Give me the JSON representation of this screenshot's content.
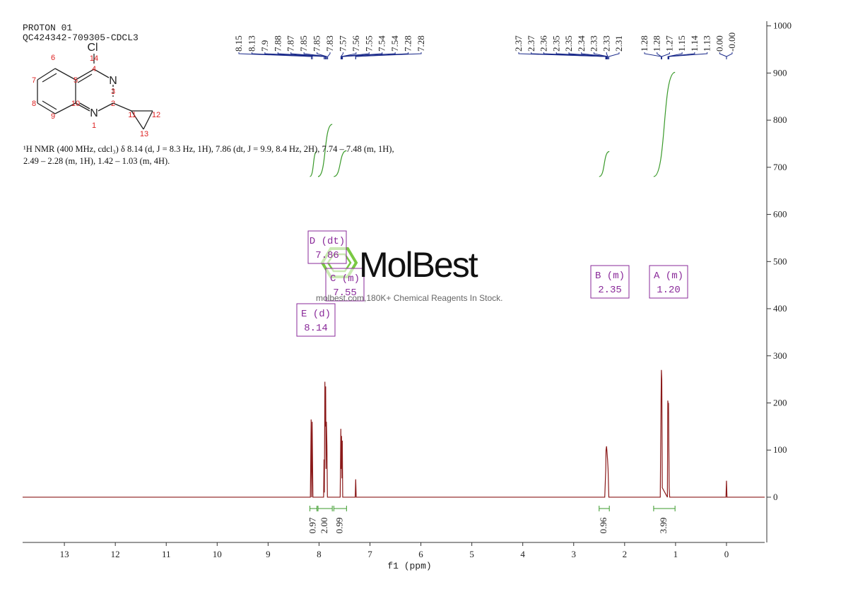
{
  "chart_data": {
    "type": "line",
    "title": "PROTON 01",
    "subtitle": "QC424342-709305-CDCL3",
    "annotation": "¹H NMR (400 MHz, cdcl₃) δ 8.14 (d, J = 8.3 Hz, 1H), 7.86 (dt, J = 9.9, 8.4 Hz, 2H), 7.74 – 7.48 (m, 1H), 2.49 – 2.28 (m, 1H), 1.42 – 1.03 (m, 4H).",
    "xlabel": "f1 (ppm)",
    "xlim": [
      13.82,
      -0.75
    ],
    "ylim": [
      -96,
      1010
    ],
    "xticks": [
      13,
      12,
      11,
      10,
      9,
      8,
      7,
      6,
      5,
      4,
      3,
      2,
      1,
      0
    ],
    "yticks": [
      0,
      100,
      200,
      300,
      400,
      500,
      600,
      700,
      800,
      900,
      1000
    ],
    "x": [
      13.82,
      8.17,
      8.155,
      8.145,
      8.135,
      8.12,
      7.91,
      7.902,
      7.895,
      7.885,
      7.878,
      7.87,
      7.862,
      7.855,
      7.845,
      7.835,
      7.585,
      7.572,
      7.565,
      7.558,
      7.55,
      7.543,
      7.535,
      7.29,
      7.28,
      7.27,
      2.39,
      2.37,
      2.365,
      2.355,
      2.345,
      2.335,
      2.325,
      2.31,
      1.3,
      1.285,
      1.278,
      1.27,
      1.26,
      1.16,
      1.152,
      1.145,
      1.138,
      1.125,
      1.115,
      0.01,
      0,
      -0.01,
      -0.75
    ],
    "series": [
      {
        "color": "#8b1a1a",
        "values": [
          0,
          0,
          165,
          0,
          160,
          0,
          0,
          80,
          10,
          245,
          150,
          235,
          60,
          160,
          110,
          0,
          0,
          145,
          60,
          130,
          40,
          120,
          0,
          0,
          38,
          0,
          0,
          60,
          100,
          108,
          95,
          80,
          60,
          0,
          0,
          200,
          270,
          250,
          20,
          0,
          205,
          195,
          200,
          20,
          0,
          0,
          35,
          0,
          0
        ]
      }
    ],
    "peak_labels": [
      [
        8.15,
        8.13,
        7.9,
        7.88,
        7.87,
        7.85,
        7.85,
        7.83,
        7.57,
        7.56,
        7.55,
        7.54,
        7.54,
        7.28,
        7.28
      ],
      [
        2.37,
        2.37,
        2.36,
        2.35,
        2.35,
        2.34,
        2.33,
        2.33,
        2.31
      ],
      [
        1.28,
        1.28,
        1.27,
        1.15,
        1.14,
        1.13,
        {
          "value": 0,
          "label": "0.00"
        },
        {
          "value": 0,
          "label": "-0.00"
        }
      ]
    ],
    "integrals": [
      {
        "from": 8.18,
        "to": 8.04,
        "value": 0.97
      },
      {
        "from": 8.02,
        "to": 7.74,
        "value": {
          "value": 2,
          "label": "2.00"
        }
      },
      {
        "from": 7.71,
        "to": 7.46,
        "value": 0.99
      },
      {
        "from": 2.5,
        "to": 2.3,
        "value": 0.96
      },
      {
        "from": 1.43,
        "to": 1.01,
        "value": 3.99
      }
    ],
    "multiplets": [
      {
        "name": "D (dt)",
        "shift": 7.86
      },
      {
        "name": "C (m)",
        "shift": 7.55
      },
      {
        "name": "E (d)",
        "shift": 8.14
      },
      {
        "name": "B (m)",
        "shift": 2.35
      },
      {
        "name": "A (m)",
        "shift": {
          "value": 1.2,
          "label": "1.20"
        }
      }
    ]
  },
  "molecule": {
    "atoms": [
      "Cl",
      "14",
      "4",
      "N",
      "3",
      "2",
      "N",
      "1",
      "10",
      "5",
      "6",
      "7",
      "8",
      "9",
      "11",
      "12",
      "13"
    ]
  },
  "watermark": {
    "brand": "MolBest",
    "tagline": "molbest.com,180K+ Chemical Reagents In Stock."
  }
}
